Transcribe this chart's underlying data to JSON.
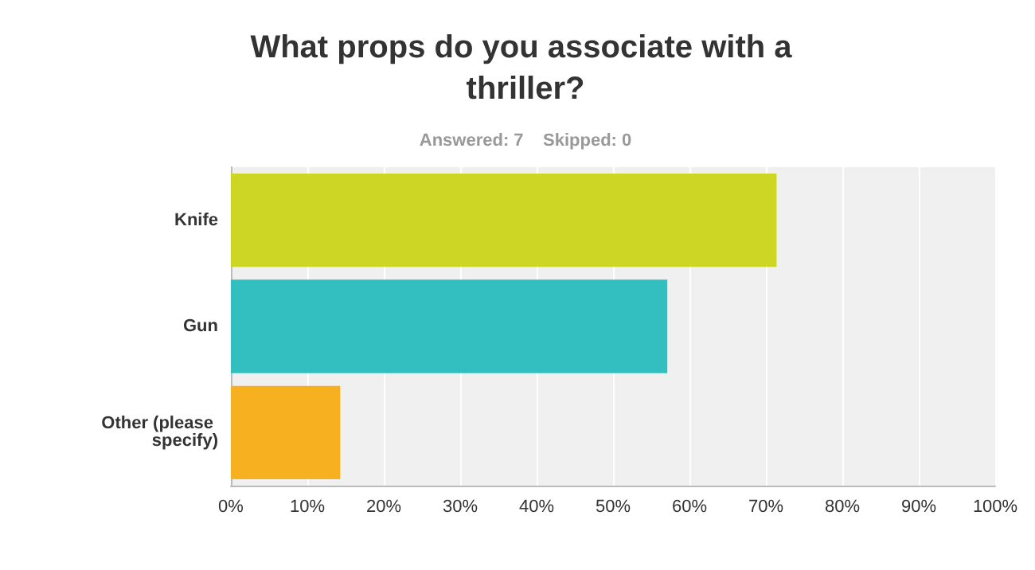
{
  "chart_data": {
    "type": "bar",
    "orientation": "horizontal",
    "title": "What props do you associate with a thriller?",
    "subtitle": "Answered: 7    Skipped: 0",
    "categories": [
      "Knife",
      "Gun",
      "Other (please specify)"
    ],
    "values": [
      71.4,
      57.1,
      14.3
    ],
    "colors": [
      "#cdd525",
      "#33bfc0",
      "#f7b01f"
    ],
    "xlim": [
      0,
      100
    ],
    "xticks": [
      {
        "value": 0,
        "label": "0%"
      },
      {
        "value": 10,
        "label": "10%"
      },
      {
        "value": 20,
        "label": "20%"
      },
      {
        "value": 30,
        "label": "30%"
      },
      {
        "value": 40,
        "label": "40%"
      },
      {
        "value": 50,
        "label": "50%"
      },
      {
        "value": 60,
        "label": "60%"
      },
      {
        "value": 70,
        "label": "70%"
      },
      {
        "value": 80,
        "label": "80%"
      },
      {
        "value": 90,
        "label": "90%"
      },
      {
        "value": 100,
        "label": "100%"
      }
    ],
    "grid": "x"
  }
}
